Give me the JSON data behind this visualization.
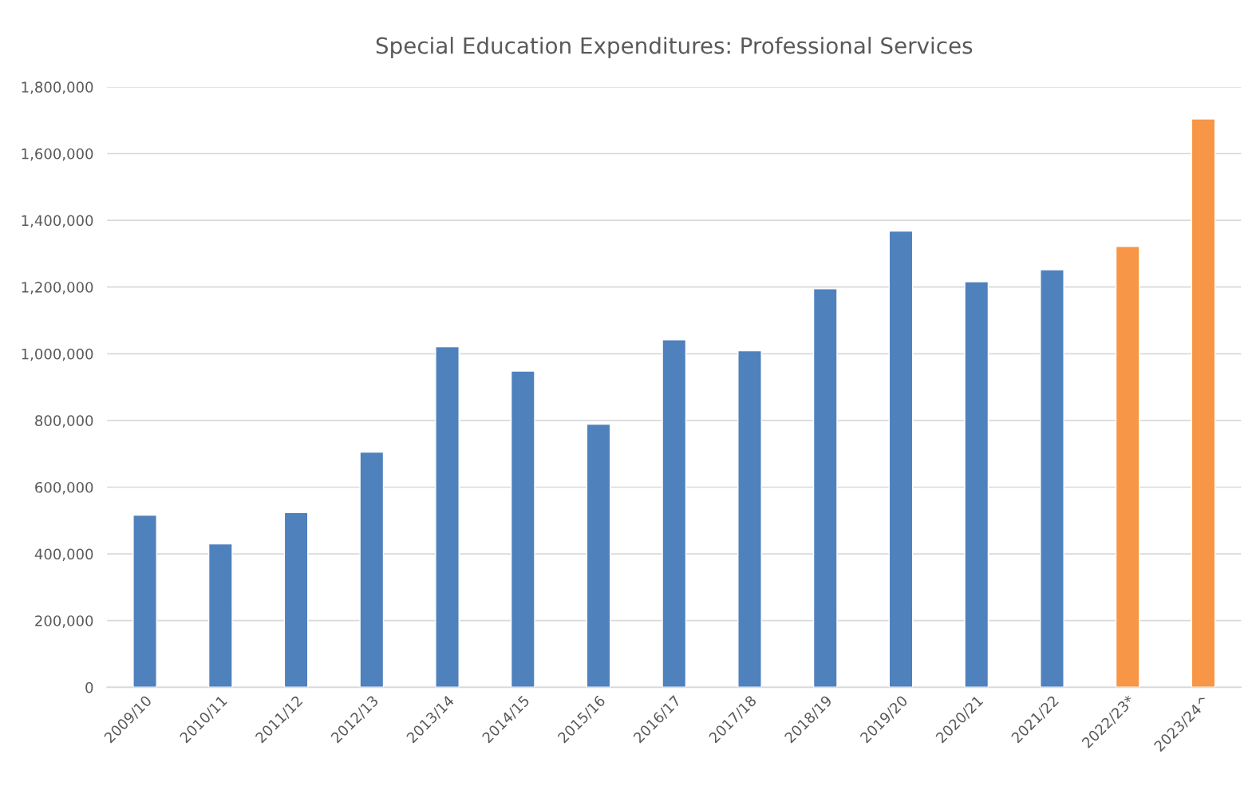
{
  "chart_data": {
    "type": "bar",
    "title": "Special Education Expenditures: Professional Services",
    "categories": [
      "2009/10",
      "2010/11",
      "2011/12",
      "2012/13",
      "2013/14",
      "2014/15",
      "2015/16",
      "2016/17",
      "2017/18",
      "2018/19",
      "2019/20",
      "2020/21",
      "2021/22",
      "2022/23*",
      "2023/24^"
    ],
    "values": [
      516000,
      430000,
      524000,
      705000,
      1021000,
      948000,
      789000,
      1042000,
      1009000,
      1195000,
      1368000,
      1216000,
      1252000,
      1322000,
      1704000
    ],
    "colors": [
      "#4f81bd",
      "#4f81bd",
      "#4f81bd",
      "#4f81bd",
      "#4f81bd",
      "#4f81bd",
      "#4f81bd",
      "#4f81bd",
      "#4f81bd",
      "#4f81bd",
      "#4f81bd",
      "#4f81bd",
      "#4f81bd",
      "#f79646",
      "#f79646"
    ],
    "ylim": [
      0,
      1800000
    ],
    "yticks": [
      {
        "value": 0,
        "label": "0"
      },
      {
        "value": 200000,
        "label": "200,000"
      },
      {
        "value": 400000,
        "label": "400,000"
      },
      {
        "value": 600000,
        "label": "600,000"
      },
      {
        "value": 800000,
        "label": "800,000"
      },
      {
        "value": 1000000,
        "label": "1,000,000"
      },
      {
        "value": 1200000,
        "label": "1,200,000"
      },
      {
        "value": 1400000,
        "label": "1,400,000"
      },
      {
        "value": 1600000,
        "label": "1,600,000"
      },
      {
        "value": 1800000,
        "label": "1,800,000"
      }
    ],
    "grid": "y",
    "legend": false
  }
}
